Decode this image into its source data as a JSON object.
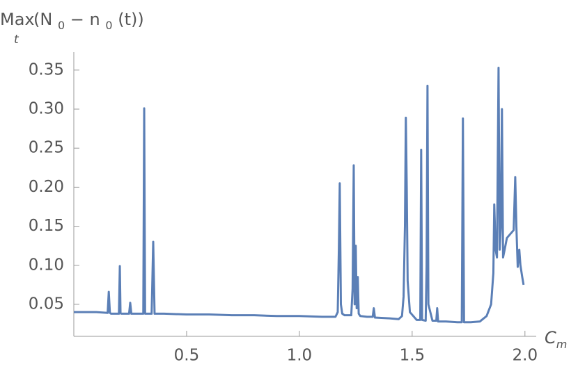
{
  "chart_data": {
    "type": "line",
    "y_label": [
      "Max",
      "t",
      "(N",
      "0",
      " − n",
      "0",
      "(t))"
    ],
    "x_label": [
      "C",
      "m"
    ],
    "xlim": [
      0,
      2.05
    ],
    "ylim": [
      0.009,
      0.373
    ],
    "xticks": [
      0.5,
      {
        "value": 1,
        "label": "1.0"
      },
      1.5,
      {
        "value": 2,
        "label": "2.0"
      }
    ],
    "yticks": [
      0.05,
      {
        "value": 0.1,
        "label": "0.10"
      },
      0.15,
      {
        "value": 0.2,
        "label": "0.20"
      },
      0.25,
      {
        "value": 0.3,
        "label": "0.30"
      },
      0.35
    ],
    "grid": false,
    "series": [
      {
        "name": null,
        "color": "#5b7fb6",
        "x": [
          0,
          0.05,
          0.1,
          0.15,
          0.155,
          0.16,
          0.165,
          0.2,
          0.204,
          0.207,
          0.21,
          0.245,
          0.25,
          0.255,
          0.3,
          0.308,
          0.312,
          0.316,
          0.345,
          0.352,
          0.358,
          0.4,
          0.5,
          0.6,
          0.7,
          0.8,
          0.9,
          1.0,
          1.1,
          1.16,
          1.17,
          1.175,
          1.179,
          1.184,
          1.19,
          1.2,
          1.23,
          1.236,
          1.241,
          1.245,
          1.25,
          1.254,
          1.259,
          1.263,
          1.27,
          1.3,
          1.325,
          1.33,
          1.335,
          1.4,
          1.44,
          1.455,
          1.462,
          1.468,
          1.472,
          1.476,
          1.48,
          1.49,
          1.52,
          1.536,
          1.54,
          1.544,
          1.56,
          1.564,
          1.568,
          1.572,
          1.59,
          1.607,
          1.611,
          1.615,
          1.65,
          1.7,
          1.72,
          1.725,
          1.73,
          1.76,
          1.8,
          1.83,
          1.85,
          1.86,
          1.864,
          1.87,
          1.876,
          1.883,
          1.888,
          1.893,
          1.898,
          1.903,
          1.91,
          1.92,
          1.935,
          1.95,
          1.957,
          1.962,
          1.968,
          1.975,
          1.98,
          1.988,
          1.994
        ],
        "values": [
          0.04,
          0.04,
          0.04,
          0.039,
          0.066,
          0.039,
          0.038,
          0.038,
          0.099,
          0.039,
          0.038,
          0.038,
          0.052,
          0.038,
          0.038,
          0.038,
          0.301,
          0.038,
          0.038,
          0.13,
          0.038,
          0.038,
          0.037,
          0.037,
          0.036,
          0.036,
          0.035,
          0.035,
          0.034,
          0.034,
          0.04,
          0.12,
          0.205,
          0.05,
          0.038,
          0.036,
          0.036,
          0.07,
          0.228,
          0.05,
          0.125,
          0.045,
          0.085,
          0.038,
          0.035,
          0.034,
          0.034,
          0.045,
          0.033,
          0.032,
          0.031,
          0.035,
          0.06,
          0.15,
          0.289,
          0.2,
          0.08,
          0.04,
          0.03,
          0.03,
          0.248,
          0.03,
          0.029,
          0.1,
          0.33,
          0.05,
          0.029,
          0.029,
          0.045,
          0.028,
          0.028,
          0.027,
          0.027,
          0.288,
          0.027,
          0.027,
          0.028,
          0.035,
          0.05,
          0.09,
          0.178,
          0.12,
          0.11,
          0.353,
          0.12,
          0.15,
          0.3,
          0.11,
          0.12,
          0.135,
          0.14,
          0.145,
          0.213,
          0.15,
          0.098,
          0.12,
          0.1,
          0.085,
          0.075
        ]
      }
    ]
  }
}
